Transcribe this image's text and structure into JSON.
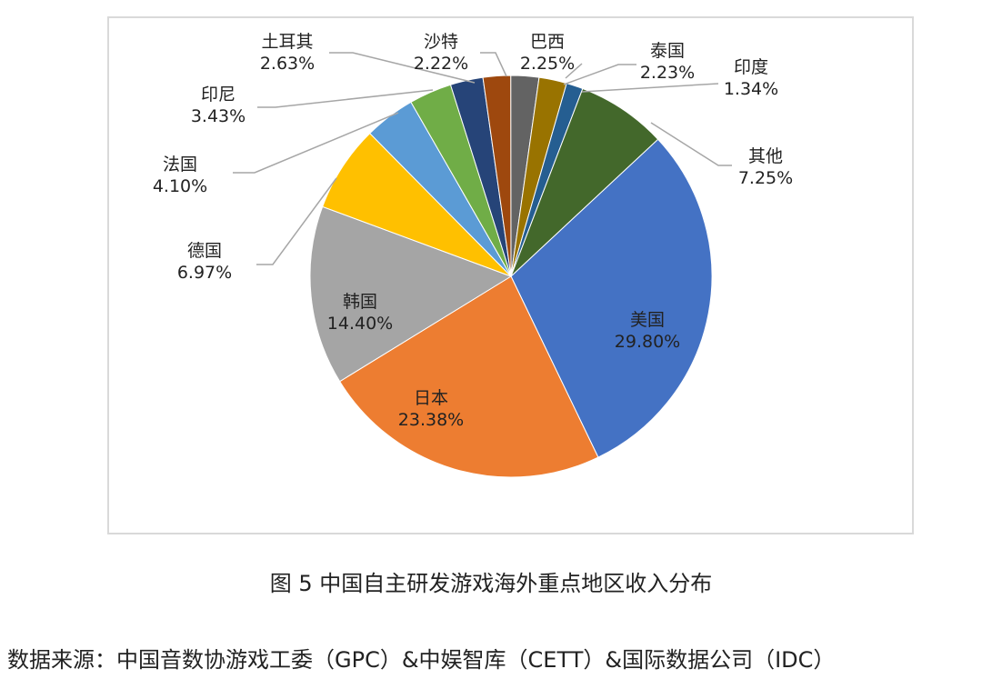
{
  "chart_data": {
    "type": "pie",
    "title": "图 5 中国自主研发游戏海外重点地区收入分布",
    "start_angle_deg": 47,
    "direction": "clockwise",
    "slices": [
      {
        "label": "美国",
        "value": 29.8,
        "text": "29.80%",
        "color": "#4472C4"
      },
      {
        "label": "日本",
        "value": 23.38,
        "text": "23.38%",
        "color": "#ED7D31"
      },
      {
        "label": "韩国",
        "value": 14.4,
        "text": "14.40%",
        "color": "#A5A5A5"
      },
      {
        "label": "德国",
        "value": 6.97,
        "text": "6.97%",
        "color": "#FFC000"
      },
      {
        "label": "法国",
        "value": 4.1,
        "text": "4.10%",
        "color": "#5B9BD5"
      },
      {
        "label": "印尼",
        "value": 3.43,
        "text": "3.43%",
        "color": "#70AD47"
      },
      {
        "label": "土耳其",
        "value": 2.63,
        "text": "2.63%",
        "color": "#264478"
      },
      {
        "label": "沙特",
        "value": 2.22,
        "text": "2.22%",
        "color": "#9E480E"
      },
      {
        "label": "巴西",
        "value": 2.25,
        "text": "2.25%",
        "color": "#636363"
      },
      {
        "label": "泰国",
        "value": 2.23,
        "text": "2.23%",
        "color": "#997300"
      },
      {
        "label": "印度",
        "value": 1.34,
        "text": "1.34%",
        "color": "#255E91"
      },
      {
        "label": "其他",
        "value": 7.25,
        "text": "7.25%",
        "color": "#43682B"
      }
    ]
  },
  "source": "数据来源：中国音数协游戏工委（GPC）&中娱智库（CETT）&国际数据公司（IDC）"
}
